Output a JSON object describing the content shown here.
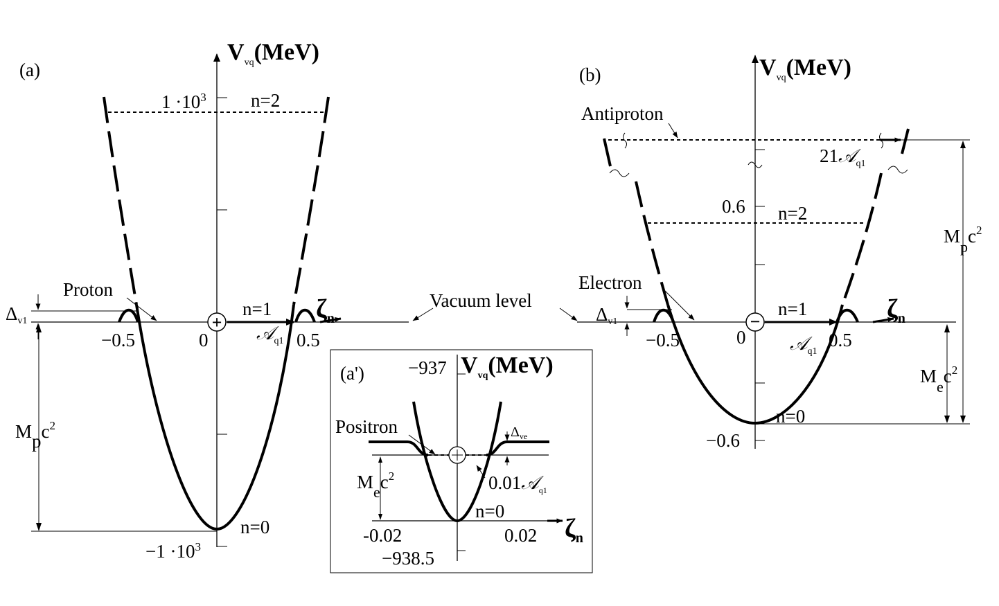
{
  "panel_a": {
    "label": "(a)",
    "y_axis": {
      "symbol": "V",
      "sub": "vq",
      "unit": "(MeV)"
    },
    "x_axis": {
      "symbol": "ζ",
      "sub": "n"
    },
    "ticks": {
      "y_top": "1 ·10",
      "y_top_exp": "3",
      "y_bottom": "−1 ·10",
      "y_bottom_exp": "3",
      "x_neg": "−0.5",
      "x_zero": "0",
      "x_pos": "0.5"
    },
    "levels": [
      "n=2",
      "n=1",
      "n=0"
    ],
    "particle": "Proton",
    "delta": {
      "sym": "Δ",
      "sub": "v1"
    },
    "mass": {
      "text": "M",
      "sub": "p",
      "c": "c",
      "exp": "2"
    },
    "width": {
      "sym": "𝒜",
      "sub": "q1"
    },
    "charge": "+",
    "vacuum_level": "Vacuum level"
  },
  "panel_a_prime": {
    "label": "(a')",
    "y_axis": {
      "symbol": "V",
      "sub": "vq",
      "unit": "(MeV)"
    },
    "x_axis": {
      "symbol": "ζ",
      "sub": "n"
    },
    "ticks": {
      "y_top": "−937",
      "y_bottom": "−938.5",
      "x_neg": "-0.02",
      "x_pos": "0.02"
    },
    "levels": [
      "n=0"
    ],
    "particle": "Positron",
    "delta": {
      "sym": "Δ",
      "sub": "ve"
    },
    "mass": {
      "text": "M",
      "sub": "e",
      "c": "c",
      "exp": "2"
    },
    "width": {
      "value": "0.01",
      "sym": "𝒜",
      "sub": "q1"
    }
  },
  "panel_b": {
    "label": "(b)",
    "y_axis": {
      "symbol": "V",
      "sub": "vq",
      "unit": "(MeV)"
    },
    "x_axis": {
      "symbol": "ζ",
      "sub": "n"
    },
    "ticks": {
      "y_top": "0.6",
      "y_bottom": "−0.6",
      "x_neg": "−0.5",
      "x_zero": "0",
      "x_pos": "0.5"
    },
    "levels": [
      "n=2",
      "n=1",
      "n=0"
    ],
    "particle": "Electron",
    "antiparticle": "Antiproton",
    "delta": {
      "sym": "Δ",
      "sub": "v1"
    },
    "mass_e": {
      "text": "M",
      "sub": "e",
      "c": "c",
      "exp": "2"
    },
    "mass_p": {
      "text": "M",
      "sub": "p",
      "c": "c",
      "exp": "2"
    },
    "width": {
      "sym": "𝒜",
      "sub": "q1"
    },
    "antiproton_width": {
      "value": "21",
      "sym": "𝒜",
      "sub": "q1"
    },
    "charge": "−"
  }
}
